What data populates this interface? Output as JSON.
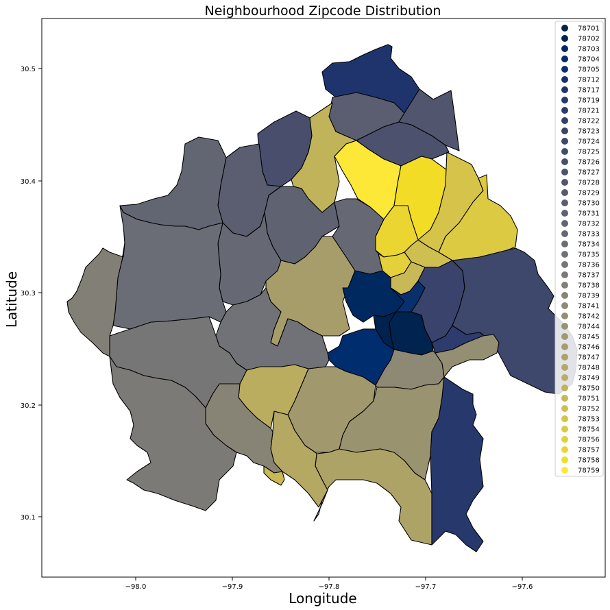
{
  "chart_data": {
    "type": "choropleth",
    "title": "Neighbourhood Zipcode Distribution",
    "xlabel": "Longitude",
    "ylabel": "Latitude",
    "xlim": [
      -98.1,
      -97.5
    ],
    "ylim": [
      30.045,
      30.545
    ],
    "xticks": [
      -98.0,
      -97.9,
      -97.8,
      -97.7,
      -97.6
    ],
    "xtick_labels": [
      "−98.0",
      "−97.9",
      "−97.8",
      "−97.7",
      "−97.6"
    ],
    "yticks": [
      30.1,
      30.2,
      30.3,
      30.4,
      30.5
    ],
    "ytick_labels": [
      "30.1",
      "30.2",
      "30.3",
      "30.4",
      "30.5"
    ],
    "grid": false,
    "legend_position": "upper-right",
    "colormap": "cividis",
    "legend": [
      {
        "label": "78701",
        "color": "#00224e"
      },
      {
        "label": "78702",
        "color": "#00234f"
      },
      {
        "label": "78703",
        "color": "#002960"
      },
      {
        "label": "78704",
        "color": "#002d6e"
      },
      {
        "label": "78705",
        "color": "#08306d"
      },
      {
        "label": "78712",
        "color": "#15326d"
      },
      {
        "label": "78717",
        "color": "#1f346d"
      },
      {
        "label": "78719",
        "color": "#27386c"
      },
      {
        "label": "78721",
        "color": "#2d3c6c"
      },
      {
        "label": "78722",
        "color": "#333f6c"
      },
      {
        "label": "78723",
        "color": "#39436c"
      },
      {
        "label": "78724",
        "color": "#3e476c"
      },
      {
        "label": "78725",
        "color": "#434b6c"
      },
      {
        "label": "78726",
        "color": "#484e6c"
      },
      {
        "label": "78727",
        "color": "#4c526d"
      },
      {
        "label": "78728",
        "color": "#51566e"
      },
      {
        "label": "78729",
        "color": "#555a6f"
      },
      {
        "label": "78730",
        "color": "#5a5e70"
      },
      {
        "label": "78731",
        "color": "#5e6271"
      },
      {
        "label": "78732",
        "color": "#626572"
      },
      {
        "label": "78733",
        "color": "#666974"
      },
      {
        "label": "78734",
        "color": "#6b6d76"
      },
      {
        "label": "78735",
        "color": "#707277"
      },
      {
        "label": "78736",
        "color": "#767676"
      },
      {
        "label": "78737",
        "color": "#7b7a77"
      },
      {
        "label": "78738",
        "color": "#827f77"
      },
      {
        "label": "78739",
        "color": "#888475"
      },
      {
        "label": "78741",
        "color": "#8e8974"
      },
      {
        "label": "78742",
        "color": "#948e72"
      },
      {
        "label": "78744",
        "color": "#9a9370"
      },
      {
        "label": "78745",
        "color": "#a1986e"
      },
      {
        "label": "78746",
        "color": "#a79d6b"
      },
      {
        "label": "78747",
        "color": "#aea367"
      },
      {
        "label": "78748",
        "color": "#b4a863"
      },
      {
        "label": "78749",
        "color": "#bbad5f"
      },
      {
        "label": "78750",
        "color": "#c1b35a"
      },
      {
        "label": "78751",
        "color": "#c8b856"
      },
      {
        "label": "78752",
        "color": "#cfbe50"
      },
      {
        "label": "78753",
        "color": "#d6c44a"
      },
      {
        "label": "78754",
        "color": "#ddca43"
      },
      {
        "label": "78756",
        "color": "#e4d03b"
      },
      {
        "label": "78757",
        "color": "#ebd631"
      },
      {
        "label": "78758",
        "color": "#f2dc26"
      },
      {
        "label": "78759",
        "color": "#fde737"
      }
    ]
  }
}
